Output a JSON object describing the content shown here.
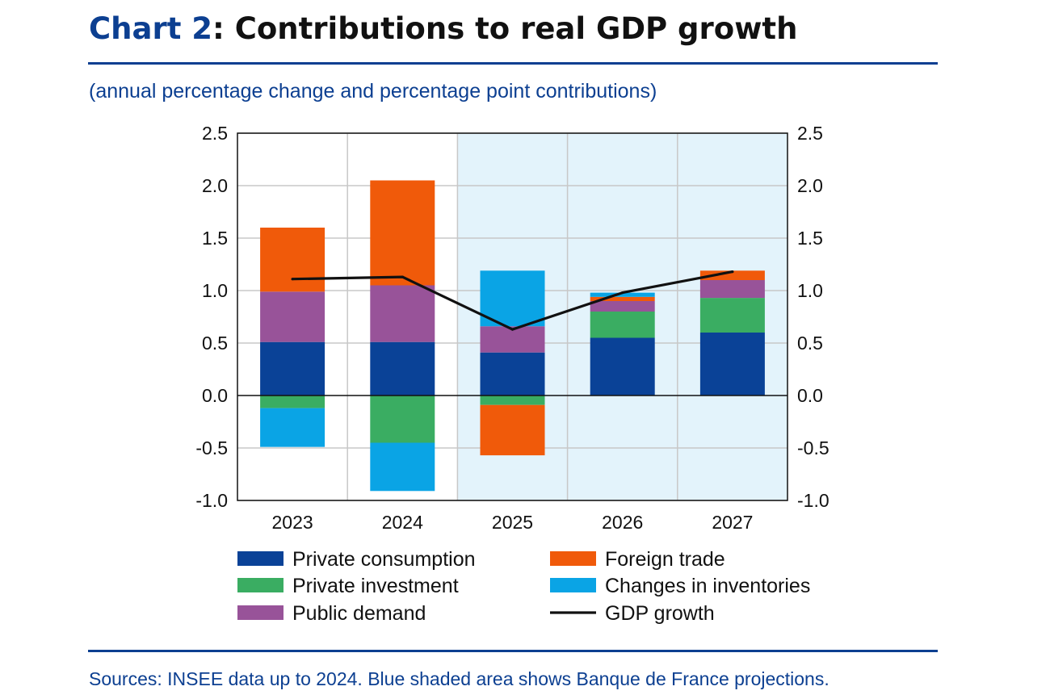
{
  "header": {
    "title_prefix": "Chart 2",
    "title_rest": ": Contributions to real GDP growth",
    "subtitle": "(annual percentage change and percentage point contributions)"
  },
  "footer": {
    "sources": "Sources: INSEE data up to 2024. Blue shaded area shows Banque de France projections."
  },
  "chart_data": {
    "type": "bar",
    "stacked": true,
    "title": "Contributions to real GDP growth",
    "ylabel": "annual percentage change and percentage point contributions",
    "categories": [
      "2023",
      "2024",
      "2025",
      "2026",
      "2027"
    ],
    "ylim": [
      -1.0,
      2.5
    ],
    "yticks": [
      2.5,
      2.0,
      1.5,
      1.0,
      0.5,
      0.0,
      -0.5,
      -1.0
    ],
    "ytick_labels": [
      "2.5",
      "2.0",
      "1.5",
      "1.0",
      "0.5",
      "0.0",
      "-0.5",
      "-1.0"
    ],
    "grid": true,
    "dual_y_axis": true,
    "shaded_projection_categories": [
      "2025",
      "2026",
      "2027"
    ],
    "series": [
      {
        "name": "Private consumption",
        "color": "#0a4297",
        "values": [
          0.51,
          0.51,
          0.41,
          0.55,
          0.6
        ]
      },
      {
        "name": "Private investment",
        "color": "#3aad62",
        "values": [
          -0.12,
          -0.45,
          -0.09,
          0.25,
          0.33
        ]
      },
      {
        "name": "Public demand",
        "color": "#985399",
        "values": [
          0.48,
          0.54,
          0.25,
          0.1,
          0.17
        ]
      },
      {
        "name": "Foreign trade",
        "color": "#f05a0a",
        "values": [
          0.61,
          1.0,
          -0.48,
          0.04,
          0.09
        ]
      },
      {
        "name": "Changes in inventories",
        "color": "#0aa4e5",
        "values": [
          -0.37,
          -0.46,
          0.53,
          0.04,
          0.0
        ]
      }
    ],
    "line": {
      "name": "GDP growth",
      "color": "#111111",
      "values": [
        1.11,
        1.13,
        0.63,
        0.98,
        1.18
      ]
    },
    "legend": [
      {
        "label": "Private consumption",
        "kind": "bar",
        "color": "#0a4297"
      },
      {
        "label": "Foreign trade",
        "kind": "bar",
        "color": "#f05a0a"
      },
      {
        "label": "Private investment",
        "kind": "bar",
        "color": "#3aad62"
      },
      {
        "label": "Changes in inventories",
        "kind": "bar",
        "color": "#0aa4e5"
      },
      {
        "label": "Public demand",
        "kind": "bar",
        "color": "#985399"
      },
      {
        "label": "GDP growth",
        "kind": "line",
        "color": "#111111"
      }
    ],
    "legend_position": "bottom",
    "shade_color": "#e3f3fb",
    "grid_color": "#c8c8c8"
  }
}
